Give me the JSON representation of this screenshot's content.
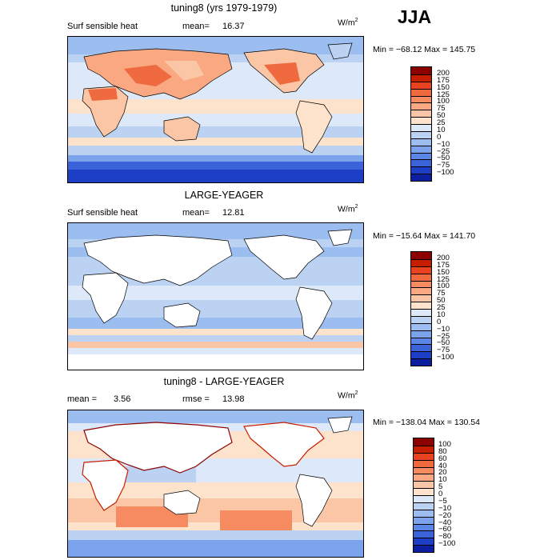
{
  "season": "JJA",
  "panels": [
    {
      "title": "tuning8 (yrs 1979-1979)",
      "left_label": "Surf sensible heat",
      "stat_label": "mean=",
      "stat_value": "16.37",
      "units": "W/m",
      "units_sup": "2",
      "minmax": "Min = −68.12 Max = 145.75",
      "colorbar": {
        "labels": [
          "200",
          "175",
          "150",
          "125",
          "100",
          "75",
          "50",
          "25",
          "10",
          "0",
          "−10",
          "−25",
          "−50",
          "−75",
          "−100"
        ],
        "colors": [
          "#8c0000",
          "#c81e00",
          "#e8431e",
          "#f06a40",
          "#f68a60",
          "#f9a882",
          "#fbc6a6",
          "#fde3cc",
          "#dde9f8",
          "#bcd2f3",
          "#9bbdf0",
          "#7aa3ec",
          "#5a87e6",
          "#3a63da",
          "#1d3fc6",
          "#0c1f9e"
        ]
      }
    },
    {
      "title": "LARGE-YEAGER",
      "left_label": "Surf sensible heat",
      "stat_label": "mean=",
      "stat_value": "12.81",
      "units": "W/m",
      "units_sup": "2",
      "minmax": "Min = −15.64 Max = 141.70",
      "colorbar": {
        "labels": [
          "200",
          "175",
          "150",
          "125",
          "100",
          "75",
          "50",
          "25",
          "10",
          "0",
          "−10",
          "−25",
          "−50",
          "−75",
          "−100"
        ],
        "colors": [
          "#8c0000",
          "#c81e00",
          "#e8431e",
          "#f06a40",
          "#f68a60",
          "#f9a882",
          "#fbc6a6",
          "#fde3cc",
          "#dde9f8",
          "#bcd2f3",
          "#9bbdf0",
          "#7aa3ec",
          "#5a87e6",
          "#3a63da",
          "#1d3fc6",
          "#0c1f9e"
        ]
      }
    },
    {
      "title": "tuning8 - LARGE-YEAGER",
      "left_label": "mean =",
      "left_value": "3.56",
      "stat_label": "rmse =",
      "stat_value": "13.98",
      "units": "W/m",
      "units_sup": "2",
      "minmax": "Min = −138.04 Max = 130.54",
      "colorbar": {
        "labels": [
          "100",
          "80",
          "60",
          "40",
          "20",
          "10",
          "5",
          "0",
          "−5",
          "−10",
          "−20",
          "−40",
          "−60",
          "−80",
          "−100"
        ],
        "colors": [
          "#8c0000",
          "#c81e00",
          "#e8431e",
          "#f06a40",
          "#f68a60",
          "#f9a882",
          "#fbc6a6",
          "#fde3cc",
          "#dde9f8",
          "#bcd2f3",
          "#9bbdf0",
          "#7aa3ec",
          "#5a87e6",
          "#3a63da",
          "#1d3fc6",
          "#0c1f9e"
        ]
      }
    }
  ]
}
